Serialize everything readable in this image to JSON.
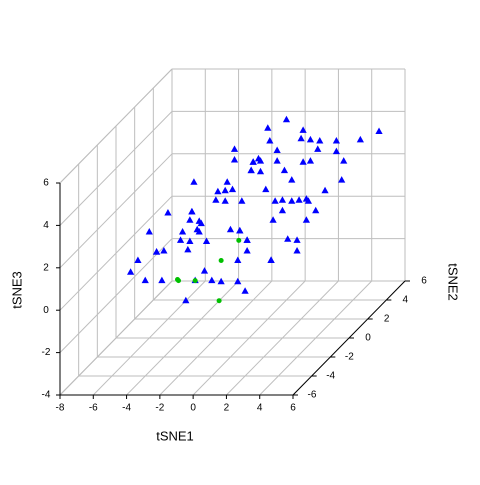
{
  "chart_data": {
    "type": "scatter3d",
    "xlabel": "tSNE1",
    "ylabel": "tSNE2",
    "zlabel": "tSNE3",
    "xlim": [
      -8,
      6
    ],
    "ylim": [
      -6,
      6
    ],
    "zlim": [
      -4,
      6
    ],
    "xticks": [
      -8,
      -6,
      -4,
      -2,
      0,
      2,
      4,
      6
    ],
    "yticks": [
      -6,
      -4,
      -2,
      0,
      2,
      4,
      6
    ],
    "zticks": [
      -4,
      -2,
      0,
      2,
      4,
      6
    ],
    "grid": true,
    "series": [
      {
        "color": "#0000ff",
        "marker": "triangle",
        "x": [
          -5,
          -3,
          -1,
          1,
          3,
          4,
          -2,
          0,
          2,
          -4,
          -2,
          0,
          2,
          4,
          -1,
          1,
          3,
          -3,
          -6,
          -4,
          -2,
          0,
          2,
          4,
          5,
          -1,
          1,
          -5,
          -3,
          -1,
          1,
          3,
          -2,
          0,
          2,
          4,
          -4,
          -2,
          0,
          2,
          3,
          -1,
          1,
          -3,
          5,
          -6,
          -3,
          -1,
          1,
          2,
          4,
          0,
          -2,
          3,
          -5,
          -4,
          -2,
          0,
          1,
          3,
          -1,
          2,
          4,
          -3,
          -1,
          0,
          2,
          5,
          -4,
          -2,
          1,
          3,
          -6,
          -5,
          -3,
          -1,
          0,
          2,
          4,
          1,
          -2,
          -4,
          -2,
          0,
          1,
          3,
          -1,
          2,
          -3,
          4
        ],
        "y": [
          -3,
          -1,
          2,
          4,
          1,
          -2,
          0,
          3,
          -4,
          2,
          -3,
          1,
          -1,
          3,
          4,
          -2,
          0,
          -4,
          0,
          1,
          -2,
          3,
          2,
          -3,
          1,
          -5,
          4,
          -1,
          3,
          0,
          -3,
          4,
          2,
          -4,
          1,
          -2,
          1,
          -1,
          4,
          0,
          -3,
          3,
          -2,
          2,
          5,
          -2,
          0,
          -4,
          1,
          3,
          -1,
          2,
          4,
          -3,
          3,
          -2,
          1,
          -1,
          0,
          2,
          -3,
          4,
          1,
          -1,
          2,
          -3,
          0,
          3,
          -4,
          1,
          -2,
          4,
          2,
          -1,
          0,
          3,
          -2,
          1,
          0,
          -3,
          2,
          0,
          4,
          -1,
          2,
          -3,
          1,
          3,
          -2,
          -1
        ],
        "z": [
          1,
          2,
          3,
          4,
          2,
          1,
          2.5,
          3.5,
          0,
          0.5,
          1.5,
          4,
          2,
          3,
          3.5,
          1,
          2.5,
          0.5,
          1,
          1.5,
          2,
          3,
          4.5,
          2,
          3,
          0,
          2.5,
          0.5,
          2,
          3,
          1,
          3.5,
          4,
          0.5,
          2,
          1.5,
          1.5,
          1,
          4.5,
          2.5,
          1,
          3,
          1.5,
          2,
          3.5,
          0,
          1,
          0.5,
          2,
          3,
          2,
          5,
          2.5,
          1,
          2,
          1,
          2.5,
          1.5,
          3,
          4,
          0.5,
          3.5,
          2.5,
          1,
          3,
          0,
          2,
          4,
          0.5,
          2,
          1.5,
          3,
          1,
          0.5,
          1.5,
          2.5,
          2,
          3,
          2,
          0,
          3.5,
          1,
          2.5,
          1.5,
          3,
          1,
          2,
          4,
          1.5,
          3
        ]
      },
      {
        "color": "#00c000",
        "marker": "circle",
        "x": [
          -1,
          0,
          1,
          -2,
          0.5,
          -1.5
        ],
        "y": [
          -4,
          -3,
          -5,
          -4,
          -2,
          -5
        ],
        "z": [
          0.5,
          1,
          0,
          0.5,
          1.5,
          1
        ]
      }
    ]
  }
}
